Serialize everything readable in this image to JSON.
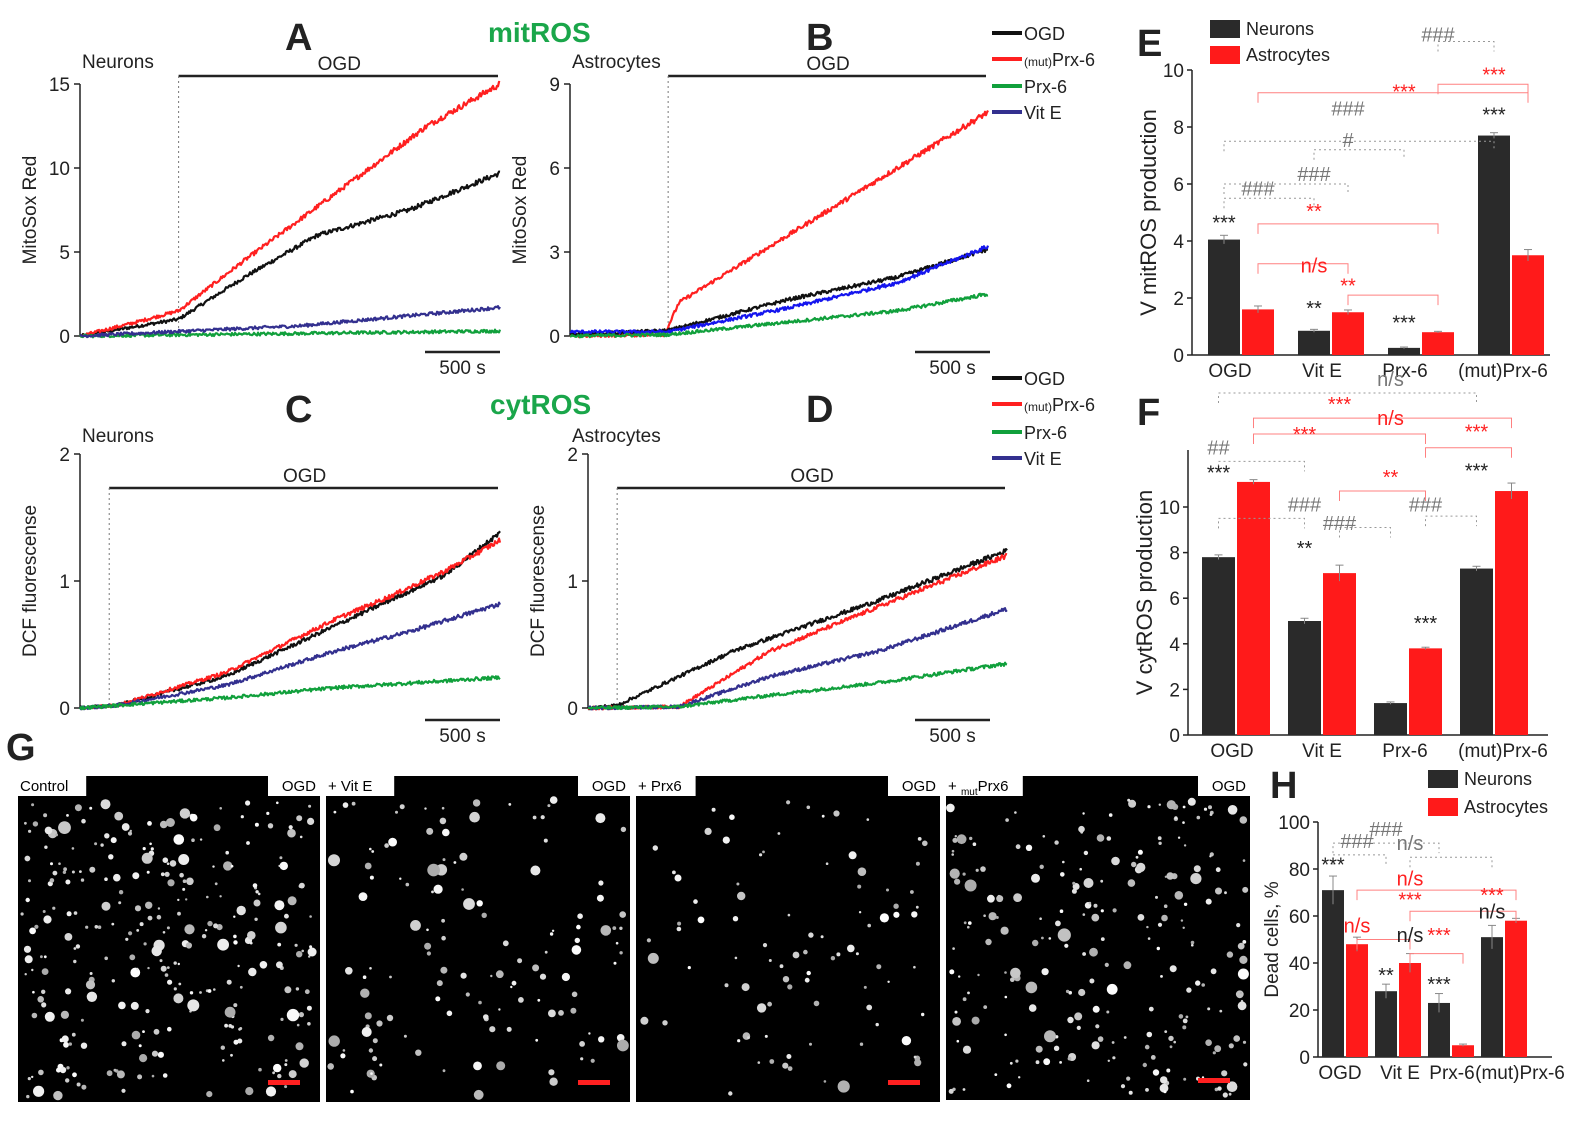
{
  "colors": {
    "ogd": "#111111",
    "mut_prx6": "#ff2020",
    "prx6": "#11a03c",
    "vite": "#33308f",
    "neurons": "#2a2a2a",
    "astrocytes": "#ff1a1a",
    "title_green": "#1aa64a"
  },
  "panel_letters": {
    "A": "A",
    "B": "B",
    "C": "C",
    "D": "D",
    "E": "E",
    "F": "F",
    "G": "G",
    "H": "H"
  },
  "titles": {
    "mitros": "mitROS",
    "cytros": "cytROS"
  },
  "legends": {
    "traces": {
      "ogd": "OGD",
      "mut_prefix": "(mut)",
      "mut_label": "Prx-6",
      "prx6": "Prx-6",
      "vite": "Vit E"
    },
    "bars": {
      "neurons": "Neurons",
      "astrocytes": "Astrocytes"
    }
  },
  "common": {
    "ogd_bar_label": "OGD",
    "scale_bar_label": "500 s"
  },
  "chart_data": [
    {
      "id": "A",
      "type": "line",
      "cell_label": "Neurons",
      "ylabel": "MitoSox Red",
      "ylim": [
        0,
        15
      ],
      "yticks": [
        0,
        5,
        10,
        15
      ],
      "x_seconds": [
        0,
        1150
      ],
      "ogd_start_s": 270,
      "scalebar_s": 500,
      "series": [
        {
          "name": "OGD",
          "color": "#111111",
          "x": [
            0,
            270,
            450,
            650,
            900,
            1150
          ],
          "y": [
            0,
            1,
            3.5,
            6,
            7.5,
            9.7
          ]
        },
        {
          "name": "(mut)Prx-6",
          "color": "#ff2020",
          "x": [
            0,
            150,
            270,
            450,
            700,
            950,
            1150
          ],
          "y": [
            0,
            0.8,
            1.5,
            4.5,
            8.5,
            12.5,
            15
          ]
        },
        {
          "name": "Prx-6",
          "color": "#11a03c",
          "x": [
            0,
            600,
            1150
          ],
          "y": [
            0,
            0.15,
            0.3
          ]
        },
        {
          "name": "Vit E",
          "color": "#33308f",
          "x": [
            0,
            600,
            1150
          ],
          "y": [
            0,
            0.6,
            1.7
          ]
        }
      ]
    },
    {
      "id": "B",
      "type": "line",
      "cell_label": "Astrocytes",
      "ylabel": "MitoSox Red",
      "ylim": [
        0,
        9
      ],
      "yticks": [
        0,
        3,
        6,
        9
      ],
      "x_seconds": [
        0,
        1150
      ],
      "ogd_start_s": 270,
      "scalebar_s": 500,
      "series": [
        {
          "name": "(mut)Prx-6",
          "color": "#ff2020",
          "x": [
            0,
            260,
            300,
            500,
            800,
            1150
          ],
          "y": [
            0,
            0.05,
            1.2,
            2.8,
            5.2,
            8
          ]
        },
        {
          "name": "OGD",
          "color": "#111111",
          "x": [
            0,
            270,
            600,
            900,
            1150
          ],
          "y": [
            0.05,
            0.2,
            1.3,
            2.1,
            3.1
          ]
        },
        {
          "name": "Vit E",
          "color": "#1515ee",
          "x": [
            0,
            270,
            600,
            900,
            1150
          ],
          "y": [
            0.15,
            0.15,
            1,
            1.9,
            3.2
          ]
        },
        {
          "name": "Prx-6",
          "color": "#11a03c",
          "x": [
            0,
            270,
            600,
            900,
            1150
          ],
          "y": [
            0,
            0.05,
            0.5,
            0.9,
            1.5
          ]
        }
      ]
    },
    {
      "id": "C",
      "type": "line",
      "cell_label": "Neurons",
      "ylabel": "DCF fluorescense",
      "ylim": [
        0,
        2
      ],
      "yticks": [
        0,
        1,
        2
      ],
      "x_seconds": [
        0,
        1150
      ],
      "ogd_start_s": 80,
      "scalebar_s": 500,
      "series": [
        {
          "name": "OGD",
          "color": "#111111",
          "x": [
            0,
            100,
            400,
            700,
            850,
            1000,
            1150
          ],
          "y": [
            0,
            0.02,
            0.25,
            0.65,
            0.85,
            1.05,
            1.38
          ]
        },
        {
          "name": "(mut)Prx-6",
          "color": "#ff2020",
          "x": [
            0,
            100,
            400,
            700,
            850,
            1000,
            1150
          ],
          "y": [
            0,
            0.02,
            0.28,
            0.7,
            0.88,
            1.08,
            1.32
          ]
        },
        {
          "name": "Vit E",
          "color": "#33308f",
          "x": [
            0,
            100,
            400,
            700,
            900,
            1150
          ],
          "y": [
            0,
            0.02,
            0.18,
            0.45,
            0.6,
            0.82
          ]
        },
        {
          "name": "Prx-6",
          "color": "#11a03c",
          "x": [
            0,
            100,
            400,
            700,
            1150
          ],
          "y": [
            0,
            0.02,
            0.08,
            0.16,
            0.24
          ]
        }
      ]
    },
    {
      "id": "D",
      "type": "line",
      "cell_label": "Astrocytes",
      "ylabel": "DCF fluorescense",
      "ylim": [
        0,
        2
      ],
      "yticks": [
        0,
        1,
        2
      ],
      "x_seconds": [
        0,
        1150
      ],
      "ogd_start_s": 80,
      "scalebar_s": 500,
      "series": [
        {
          "name": "OGD",
          "color": "#111111",
          "x": [
            0,
            80,
            400,
            800,
            1150
          ],
          "y": [
            0,
            0.02,
            0.45,
            0.85,
            1.24
          ]
        },
        {
          "name": "(mut)Prx-6",
          "color": "#ff2020",
          "x": [
            0,
            250,
            500,
            800,
            1150
          ],
          "y": [
            0,
            0.01,
            0.45,
            0.8,
            1.2
          ]
        },
        {
          "name": "Vit E",
          "color": "#33308f",
          "x": [
            0,
            250,
            500,
            800,
            1150
          ],
          "y": [
            0,
            0.01,
            0.25,
            0.45,
            0.78
          ]
        },
        {
          "name": "Prx-6",
          "color": "#11a03c",
          "x": [
            0,
            250,
            500,
            800,
            1150
          ],
          "y": [
            0,
            0.01,
            0.1,
            0.2,
            0.35
          ]
        }
      ]
    },
    {
      "id": "E",
      "type": "bar",
      "ylabel": "V mitROS production",
      "ylim": [
        0,
        10
      ],
      "yticks": [
        0,
        2,
        4,
        6,
        8,
        10
      ],
      "categories": [
        "OGD",
        "Vit E",
        "Prx-6",
        "(mut)Prx-6"
      ],
      "series": [
        {
          "name": "Neurons",
          "color": "#2a2a2a",
          "values": [
            4.05,
            0.85,
            0.25,
            7.7
          ],
          "errors": [
            0.15,
            0.05,
            0.03,
            0.1
          ]
        },
        {
          "name": "Astrocytes",
          "color": "#ff1a1a",
          "values": [
            1.6,
            1.5,
            0.8,
            3.5
          ],
          "errors": [
            0.12,
            0.08,
            0.03,
            0.2
          ]
        }
      ],
      "annotations": [
        {
          "text": "***",
          "color": "#222",
          "cat": 0,
          "bar": 0,
          "y": 4.4
        },
        {
          "text": "**",
          "color": "#222",
          "cat": 1,
          "bar": 0,
          "y": 1.4
        },
        {
          "text": "n/s",
          "color": "#ff2020",
          "cat": 1,
          "bar": 0,
          "y": 2.9
        },
        {
          "text": "**",
          "color": "#ff2020",
          "cat": 1,
          "bar": 1,
          "y": 2.2
        },
        {
          "text": "***",
          "color": "#222",
          "cat": 2,
          "bar": 0,
          "y": 0.9
        },
        {
          "text": "**",
          "color": "#ff2020",
          "cat": 1,
          "bar": 0,
          "y": 4.8
        },
        {
          "text": "***",
          "color": "#222",
          "cat": 3,
          "bar": 0,
          "y": 8.2
        },
        {
          "text": "***",
          "color": "#ff2020",
          "cat": 3,
          "bar": 0,
          "y": 9.6
        },
        {
          "text": "***",
          "color": "#ff2020",
          "cat": 2,
          "bar": 0,
          "y": 9.0
        },
        {
          "text": "###",
          "color": "#777",
          "cat": 0,
          "bar": 1,
          "y": 5.6
        },
        {
          "text": "###",
          "color": "#777",
          "cat": 1,
          "bar": 0,
          "y": 6.1
        },
        {
          "text": "#",
          "color": "#777",
          "cat": 1,
          "bar": 1,
          "y": 7.3
        },
        {
          "text": "###",
          "color": "#777",
          "cat": 1,
          "bar": 1,
          "y": 8.4
        },
        {
          "text": "###",
          "color": "#777",
          "cat": 2,
          "bar": 1,
          "y": 11.0
        }
      ]
    },
    {
      "id": "F",
      "type": "bar",
      "ylabel": "V cytROS production",
      "ylim": [
        0,
        12.5
      ],
      "yticks": [
        0,
        2,
        4,
        6,
        8,
        10
      ],
      "categories": [
        "OGD",
        "Vit E",
        "Prx-6",
        "(mut)Prx-6"
      ],
      "series": [
        {
          "name": "Neurons",
          "color": "#2a2a2a",
          "values": [
            7.8,
            5.0,
            1.4,
            7.3
          ],
          "errors": [
            0.1,
            0.12,
            0.05,
            0.1
          ]
        },
        {
          "name": "Astrocytes",
          "color": "#ff1a1a",
          "values": [
            11.1,
            7.1,
            3.8,
            10.7
          ],
          "errors": [
            0.1,
            0.35,
            0.05,
            0.35
          ]
        }
      ],
      "annotations": [
        {
          "text": "***",
          "color": "#222",
          "cat": 0,
          "bar": 0,
          "y": 11.2
        },
        {
          "text": "##",
          "color": "#777",
          "cat": 0,
          "bar": 0,
          "y": 12.3
        },
        {
          "text": "***",
          "color": "#ff2020",
          "cat": 1,
          "bar": 0,
          "y": 12.9
        },
        {
          "text": "***",
          "color": "#ff2020",
          "cat": 1,
          "bar": 1,
          "y": 14.2
        },
        {
          "text": "n/s",
          "color": "#ff2020",
          "cat": 2,
          "bar": 0,
          "y": 13.6
        },
        {
          "text": "n/s",
          "color": "#777",
          "cat": 2,
          "bar": 0,
          "y": 15.3
        },
        {
          "text": "***",
          "color": "#ff2020",
          "cat": 3,
          "bar": 0,
          "y": 13.0
        },
        {
          "text": "**",
          "color": "#ff2020",
          "cat": 2,
          "bar": 0,
          "y": 11.0
        },
        {
          "text": "**",
          "color": "#222",
          "cat": 1,
          "bar": 0,
          "y": 7.9
        },
        {
          "text": "###",
          "color": "#777",
          "cat": 1,
          "bar": 0,
          "y": 9.8
        },
        {
          "text": "###",
          "color": "#777",
          "cat": 1,
          "bar": 1,
          "y": 9.0
        },
        {
          "text": "###",
          "color": "#777",
          "cat": 2,
          "bar": 1,
          "y": 9.8
        },
        {
          "text": "***",
          "color": "#222",
          "cat": 2,
          "bar": 1,
          "y": 4.6
        },
        {
          "text": "***",
          "color": "#222",
          "cat": 3,
          "bar": 0,
          "y": 11.3
        }
      ]
    },
    {
      "id": "H",
      "type": "bar",
      "ylabel": "Dead cells, %",
      "ylim": [
        0,
        100
      ],
      "yticks": [
        0,
        20,
        40,
        60,
        80,
        100
      ],
      "categories": [
        "OGD",
        "Vit E",
        "Prx-6",
        "(mut)Prx-6"
      ],
      "series": [
        {
          "name": "Neurons",
          "color": "#2a2a2a",
          "values": [
            71,
            28,
            23,
            51
          ],
          "errors": [
            6,
            3,
            4,
            5
          ]
        },
        {
          "name": "Astrocytes",
          "color": "#ff1a1a",
          "values": [
            48,
            40,
            5,
            58
          ],
          "errors": [
            3,
            4,
            0.5,
            1
          ]
        }
      ],
      "annotations": [
        {
          "text": "***",
          "color": "#222",
          "cat": 0,
          "bar": 0,
          "y": 79
        },
        {
          "text": "###",
          "color": "#777",
          "cat": 0,
          "bar": 1,
          "y": 89
        },
        {
          "text": "###",
          "color": "#777",
          "cat": 1,
          "bar": 0,
          "y": 94
        },
        {
          "text": "n/s",
          "color": "#777",
          "cat": 1,
          "bar": 1,
          "y": 88
        },
        {
          "text": "n/s",
          "color": "#ff2020",
          "cat": 1,
          "bar": 1,
          "y": 73
        },
        {
          "text": "***",
          "color": "#ff2020",
          "cat": 1,
          "bar": 1,
          "y": 64
        },
        {
          "text": "***",
          "color": "#ff2020",
          "cat": 3,
          "bar": 0,
          "y": 66
        },
        {
          "text": "n/s",
          "color": "#ff2020",
          "cat": 0,
          "bar": 1,
          "y": 53
        },
        {
          "text": "n/s",
          "color": "#222",
          "cat": 1,
          "bar": 1,
          "y": 49
        },
        {
          "text": "**",
          "color": "#222",
          "cat": 1,
          "bar": 0,
          "y": 32
        },
        {
          "text": "***",
          "color": "#ff2020",
          "cat": 2,
          "bar": 0,
          "y": 49
        },
        {
          "text": "***",
          "color": "#222",
          "cat": 2,
          "bar": 0,
          "y": 28
        },
        {
          "text": "n/s",
          "color": "#222",
          "cat": 3,
          "bar": 0,
          "y": 59
        }
      ]
    }
  ],
  "micrographs": {
    "tiles": [
      {
        "left": "Control",
        "right": "OGD",
        "density": 300,
        "scalebar_color": "#ff2020"
      },
      {
        "left": "+ Vit E",
        "right": "OGD",
        "density": 130,
        "scalebar_color": "#ff2020"
      },
      {
        "left": "+ Prx6",
        "right": "OGD",
        "density": 90,
        "scalebar_color": "#ff2020"
      },
      {
        "left_prefix": "+ ",
        "left_sub": "mut",
        "left": "Prx6",
        "right": "OGD",
        "density": 240,
        "scalebar_color": "#ff2020"
      }
    ]
  }
}
